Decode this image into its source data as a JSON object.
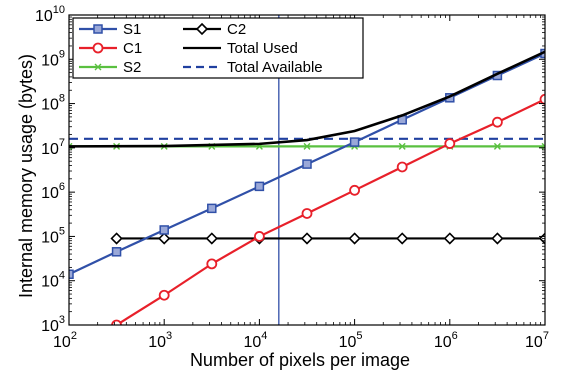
{
  "chart_data": {
    "type": "line",
    "xlabel": "Number of pixels per image",
    "ylabel": "Internal memory usage (bytes)",
    "x_scale": "log",
    "y_scale": "log",
    "xlim": [
      100,
      10000000
    ],
    "ylim": [
      1000,
      10000000000
    ],
    "x_ticks": [
      {
        "base": "10",
        "exp": "2",
        "value": 100
      },
      {
        "base": "10",
        "exp": "3",
        "value": 1000
      },
      {
        "base": "10",
        "exp": "4",
        "value": 10000
      },
      {
        "base": "10",
        "exp": "5",
        "value": 100000
      },
      {
        "base": "10",
        "exp": "6",
        "value": 1000000
      },
      {
        "base": "10",
        "exp": "7",
        "value": 10000000
      }
    ],
    "y_ticks": [
      {
        "base": "10",
        "exp": "3",
        "value": 1000
      },
      {
        "base": "10",
        "exp": "4",
        "value": 10000
      },
      {
        "base": "10",
        "exp": "5",
        "value": 100000
      },
      {
        "base": "10",
        "exp": "6",
        "value": 1000000
      },
      {
        "base": "10",
        "exp": "7",
        "value": 10000000
      },
      {
        "base": "10",
        "exp": "8",
        "value": 100000000
      },
      {
        "base": "10",
        "exp": "9",
        "value": 1000000000
      },
      {
        "base": "10",
        "exp": "10",
        "value": 10000000000
      }
    ],
    "grid": false,
    "legend_position": "top-left",
    "vertical_marker_x": 16000,
    "series": [
      {
        "name": "S1",
        "color": "#3050a8",
        "marker": "square",
        "dash": "solid",
        "points": [
          [
            100,
            14000
          ],
          [
            316,
            45000
          ],
          [
            1000,
            140000
          ],
          [
            3162,
            430000
          ],
          [
            10000,
            1350000
          ],
          [
            31623,
            4300000
          ],
          [
            100000,
            13500000
          ],
          [
            316228,
            43000000
          ],
          [
            1000000,
            135000000
          ],
          [
            3162278,
            430000000
          ],
          [
            10000000,
            1350000000
          ]
        ]
      },
      {
        "name": "C1",
        "color": "#e8202a",
        "marker": "circle",
        "dash": "solid",
        "points": [
          [
            316,
            1000
          ],
          [
            1000,
            4700
          ],
          [
            3162,
            24000
          ],
          [
            10000,
            100000
          ],
          [
            31623,
            330000
          ],
          [
            100000,
            1100000
          ],
          [
            316228,
            3700000
          ],
          [
            1000000,
            12500000
          ],
          [
            3162278,
            38000000
          ],
          [
            10000000,
            125000000
          ]
        ]
      },
      {
        "name": "S2",
        "color": "#5ac040",
        "marker": "x",
        "dash": "solid",
        "points": [
          [
            100,
            10800000
          ],
          [
            316,
            10800000
          ],
          [
            1000,
            10800000
          ],
          [
            3162,
            10800000
          ],
          [
            10000,
            10800000
          ],
          [
            31623,
            10800000
          ],
          [
            100000,
            10800000
          ],
          [
            316228,
            10800000
          ],
          [
            1000000,
            10800000
          ],
          [
            3162278,
            10800000
          ],
          [
            10000000,
            10800000
          ]
        ]
      },
      {
        "name": "C2",
        "color": "#000000",
        "marker": "diamond",
        "dash": "solid",
        "points": [
          [
            316,
            90000
          ],
          [
            1000,
            90000
          ],
          [
            3162,
            90000
          ],
          [
            10000,
            90000
          ],
          [
            31623,
            90000
          ],
          [
            100000,
            90000
          ],
          [
            316228,
            90000
          ],
          [
            1000000,
            90000
          ],
          [
            3162278,
            90000
          ],
          [
            10000000,
            90000
          ]
        ]
      },
      {
        "name": "Total Used",
        "color": "#000000",
        "marker": "none",
        "dash": "solid",
        "points": [
          [
            100,
            10800000
          ],
          [
            1000,
            11000000
          ],
          [
            10000,
            12300000
          ],
          [
            31623,
            15000000
          ],
          [
            100000,
            24000000
          ],
          [
            316228,
            54000000
          ],
          [
            1000000,
            145000000
          ],
          [
            3162278,
            470000000
          ],
          [
            10000000,
            1480000000
          ]
        ]
      },
      {
        "name": "Total Available",
        "color": "#2040a0",
        "marker": "none",
        "dash": "dashed",
        "points": [
          [
            100,
            16000000
          ],
          [
            10000000,
            16000000
          ]
        ]
      }
    ],
    "legend": [
      {
        "series": "S1"
      },
      {
        "series": "C2"
      },
      {
        "series": "C1"
      },
      {
        "series": "Total Used"
      },
      {
        "series": "S2"
      },
      {
        "series": "Total Available"
      }
    ]
  }
}
